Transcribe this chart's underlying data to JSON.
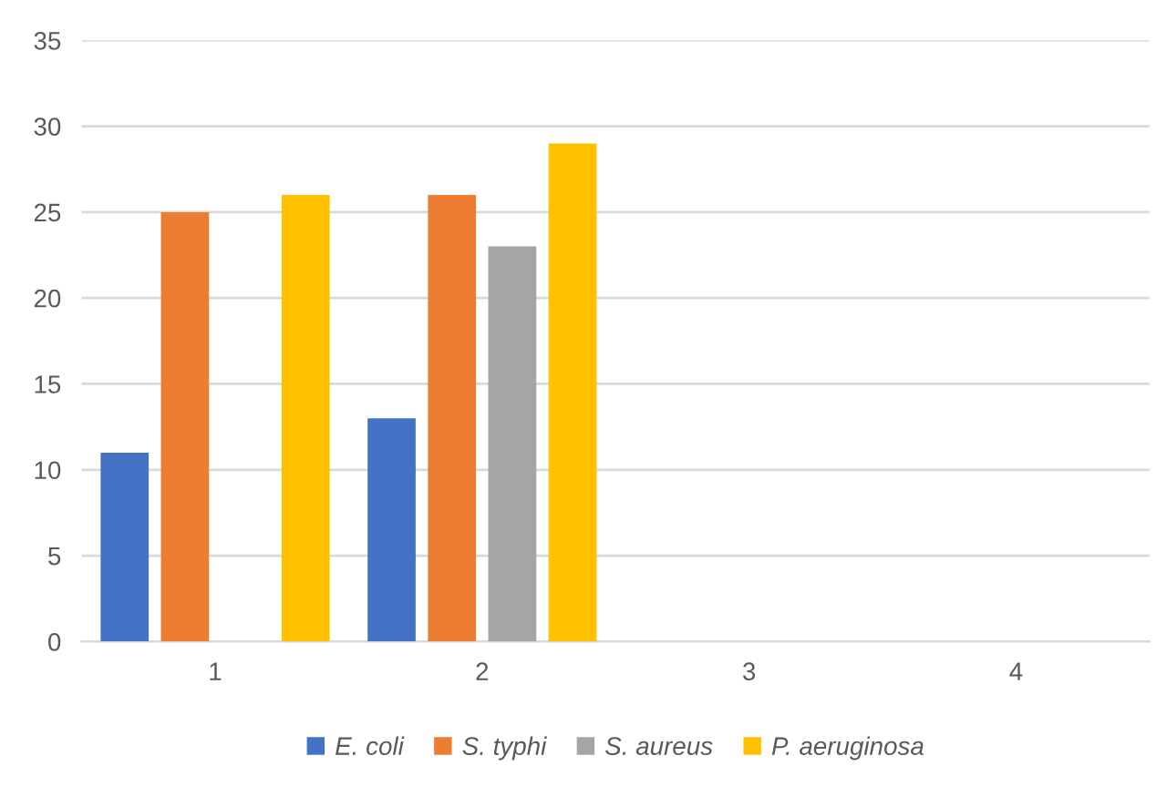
{
  "chart_data": {
    "type": "bar",
    "categories": [
      "1",
      "2",
      "3",
      "4"
    ],
    "series": [
      {
        "name": "E. coli",
        "color": "#4472c4",
        "values": [
          11,
          13,
          0,
          0
        ]
      },
      {
        "name": "S. typhi",
        "color": "#ed7d31",
        "values": [
          25,
          26,
          0,
          0
        ]
      },
      {
        "name": "S. aureus",
        "color": "#a5a5a5",
        "values": [
          0,
          23,
          0,
          0
        ]
      },
      {
        "name": "P. aeruginosa",
        "color": "#ffc000",
        "values": [
          26,
          29,
          0,
          0
        ]
      }
    ],
    "ylim": [
      0,
      35
    ],
    "yticks": [
      0,
      5,
      10,
      15,
      20,
      25,
      30,
      35
    ],
    "grid": "y",
    "legend": "bottom"
  }
}
